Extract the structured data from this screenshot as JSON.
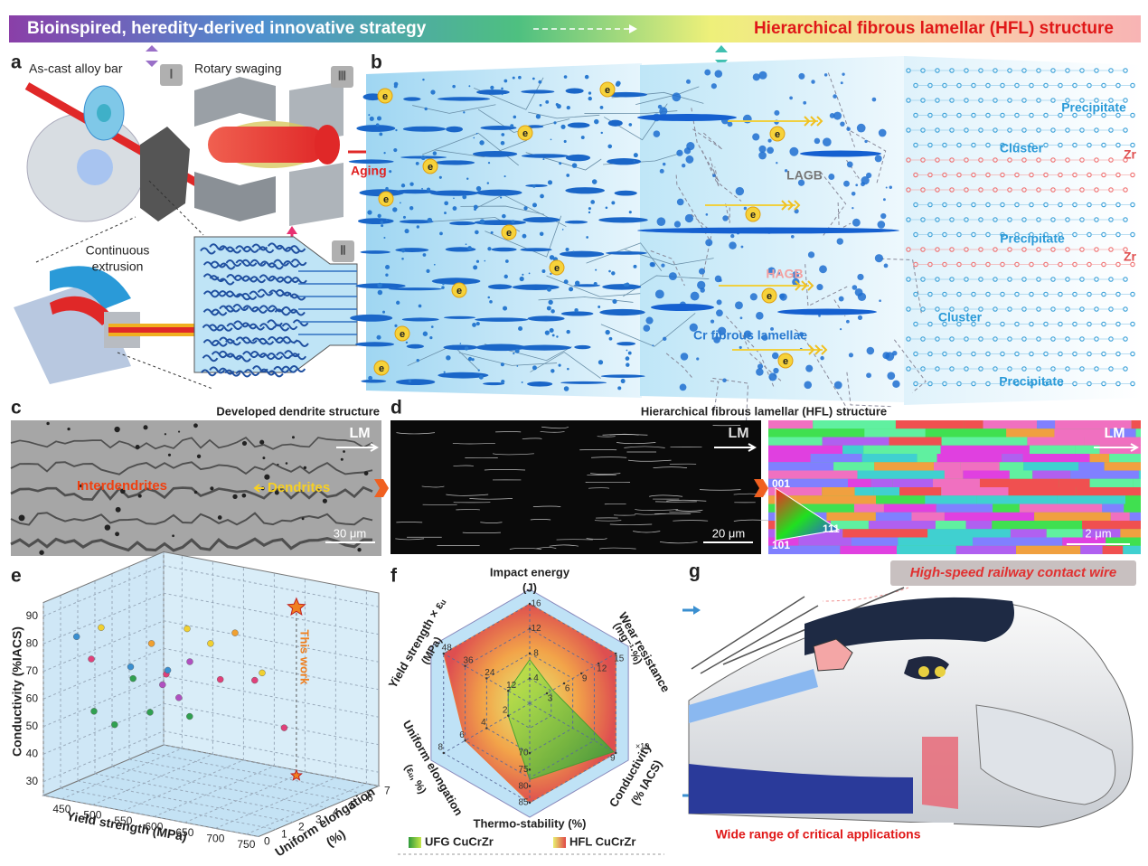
{
  "banner": {
    "left": "Bioinspired, heredity-derived innovative strategy",
    "right": "Hierarchical fibrous lamellar (HFL) structure"
  },
  "panel_a": {
    "letter": "a",
    "as_cast": "As-cast alloy bar",
    "rotary": "Rotary swaging",
    "extrusion_1": "Continuous",
    "extrusion_2": "extrusion",
    "step_1": "Ⅰ",
    "step_2": "Ⅱ",
    "step_3": "Ⅲ",
    "aging": "Aging"
  },
  "panel_b": {
    "letter": "b",
    "electron": "e",
    "lagb": "LAGB",
    "hagb": "HAGB",
    "lamellae": "Cr fibrous lamellae",
    "precipitate": "Precipitate",
    "cluster": "Cluster",
    "zr": "Zr"
  },
  "panel_c": {
    "letter": "c",
    "title": "Developed dendrite structure",
    "direction": "LM",
    "interdendrites": "Interdendrites",
    "dendrites": "Dendrites",
    "scale": "30 μm"
  },
  "panel_d": {
    "letter": "d",
    "title": "Hierarchical fibrous lamellar (HFL) structure",
    "direction": "LM",
    "scale_sem": "20 μm",
    "scale_ebsd": "2 μm",
    "orientations": [
      "001",
      "111",
      "101"
    ]
  },
  "panel_e": {
    "type": "scatter3d",
    "letter": "e",
    "xlabel": "Yield strength (MPa)",
    "ylabel": "Conductivity (%IACS)",
    "zlabel": [
      "Uniform elongation",
      "(%)"
    ],
    "xlim": [
      420,
      770
    ],
    "xticks": [
      450,
      500,
      550,
      600,
      650,
      700,
      750
    ],
    "ylim": [
      25,
      95
    ],
    "yticks": [
      30,
      40,
      50,
      60,
      70,
      80,
      90
    ],
    "zlim": [
      0,
      7
    ],
    "zticks": [
      0,
      1,
      2,
      3,
      4,
      5,
      6,
      7
    ],
    "points": {
      "x": [
        460,
        470,
        480,
        500,
        510,
        520,
        530,
        540,
        550,
        560,
        570,
        580,
        600,
        610,
        620,
        630,
        650,
        680,
        700,
        720,
        480,
        590
      ],
      "y": [
        83,
        74,
        56,
        88,
        66,
        72,
        62,
        80,
        68,
        58,
        84,
        73,
        76,
        66,
        82,
        60,
        86,
        70,
        51,
        77,
        48,
        63
      ],
      "z": [
        0.5,
        1,
        0.8,
        0.5,
        2,
        1.5,
        3,
        2,
        2.5,
        1.2,
        3,
        2.8,
        0.8,
        3.5,
        4,
        1,
        1.5,
        3,
        4,
        2,
        2,
        1.8
      ],
      "colors": [
        "#3a8fd0",
        "#e0407a",
        "#30a050",
        "#f0d030",
        "#30a050",
        "#3a8fd0",
        "#b050c0",
        "#f0a030",
        "#e0407a",
        "#30a050",
        "#f0d030",
        "#b050c0",
        "#3a8fd0",
        "#e0407a",
        "#f0a030",
        "#30a050",
        "#f0d030",
        "#e0407a",
        "#e0407a",
        "#f0d030",
        "#30a050",
        "#b050c0"
      ]
    },
    "highlight": {
      "label": "This work",
      "x": 650,
      "y": 86,
      "z": 6.5,
      "color": "#f08020"
    }
  },
  "panel_f": {
    "type": "radar",
    "letter": "f",
    "axes": [
      {
        "name": "Impact energy",
        "unit": "(J)",
        "lim": [
          0,
          16
        ],
        "ticks": [
          4,
          8,
          12,
          16
        ]
      },
      {
        "name": "Wear resistance",
        "unit": "(mg⁻¹·%)",
        "lim": [
          0,
          15
        ],
        "ticks": [
          3,
          6,
          9,
          12,
          15
        ]
      },
      {
        "name": "Conductivity",
        "unit": "(% IACS)",
        "lim": [
          5,
          9
        ],
        "ticks": [
          9
        ],
        "note": "×10"
      },
      {
        "name": "Thermo-stability (%)",
        "lim": [
          55,
          85
        ],
        "ticks": [
          70,
          75,
          80,
          85
        ]
      },
      {
        "name": "Uniform elongation",
        "unit": "(εᵤ, %)",
        "lim": [
          0,
          8
        ],
        "ticks": [
          2,
          4,
          6,
          8
        ]
      },
      {
        "name": "Yield strength × εᵤ",
        "unit": "(MPa)",
        "lim": [
          0,
          48
        ],
        "ticks": [
          12,
          24,
          36,
          48
        ]
      }
    ],
    "series": [
      {
        "name": "UFG CuCrZr",
        "color": "#3aa030",
        "values": [
          7,
          4,
          8.9,
          78,
          2,
          12
        ]
      },
      {
        "name": "HFL CuCrZr",
        "color": "#f07030",
        "values": [
          16,
          15,
          9,
          85,
          6,
          48
        ]
      }
    ]
  },
  "panel_g": {
    "letter": "g",
    "application": "High-speed railway contact wire",
    "caption": "Wide range of critical applications"
  }
}
